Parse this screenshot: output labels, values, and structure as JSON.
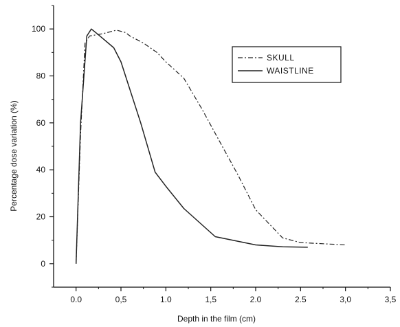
{
  "chart_data": {
    "type": "line",
    "xlabel": "Depth in the film (cm)",
    "ylabel": "Percentage dose variation (%)",
    "xlim": [
      -0.25,
      3.5
    ],
    "ylim": [
      -10,
      110
    ],
    "x_ticks": [
      0.0,
      0.5,
      1.0,
      1.5,
      2.0,
      2.5,
      3.0,
      3.5
    ],
    "x_tick_labels": [
      "0.0",
      "0,5",
      "1.0",
      "1,5",
      "2.0",
      "2.5",
      "3,0",
      "3,5"
    ],
    "y_ticks": [
      0,
      20,
      40,
      60,
      80,
      100
    ],
    "y_tick_labels": [
      "0",
      "20",
      "40",
      "60",
      "80",
      "100"
    ],
    "grid": false,
    "legend_position": "top-right",
    "series": [
      {
        "name": "SKULL",
        "style": "dash-dot",
        "color": "#222222",
        "x": [
          0.0,
          0.05,
          0.1,
          0.15,
          0.3,
          0.45,
          0.55,
          0.6,
          0.75,
          0.9,
          1.0,
          1.2,
          1.4,
          1.6,
          1.8,
          2.0,
          2.15,
          2.3,
          2.5,
          2.75,
          3.0
        ],
        "y": [
          0,
          55,
          94,
          97,
          98,
          99.5,
          98.5,
          97,
          94,
          90,
          86,
          79,
          66,
          52,
          38,
          23,
          17,
          11,
          9,
          8.5,
          8
        ]
      },
      {
        "name": "WAISTLINE",
        "style": "solid",
        "color": "#222222",
        "x": [
          0.0,
          0.05,
          0.12,
          0.17,
          0.25,
          0.42,
          0.5,
          0.72,
          0.88,
          1.0,
          1.2,
          1.55,
          2.0,
          2.3,
          2.58
        ],
        "y": [
          0,
          60,
          97,
          100,
          97.5,
          92,
          86,
          60,
          39,
          33,
          23.5,
          11.5,
          8,
          7.2,
          7
        ]
      }
    ]
  }
}
